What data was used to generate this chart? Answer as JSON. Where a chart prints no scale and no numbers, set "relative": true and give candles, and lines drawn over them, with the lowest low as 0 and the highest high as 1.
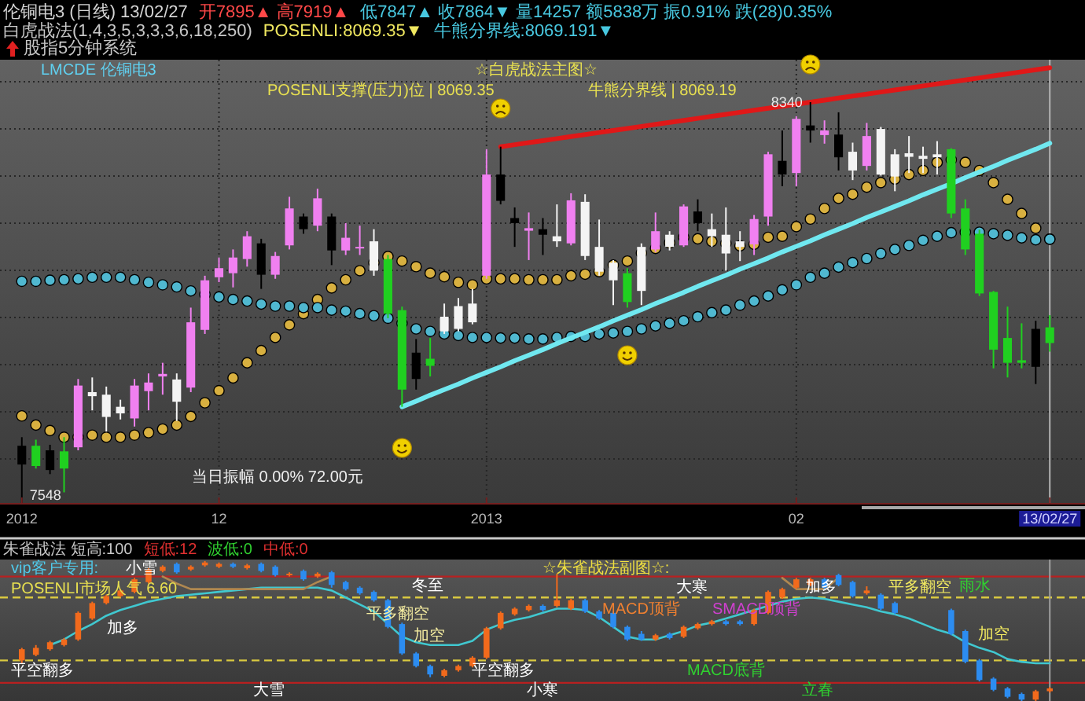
{
  "chart_data": [
    {
      "type": "candlestick",
      "title": "伦铜电3 (日线) 13/02/27",
      "subtitle": "☆白虎战法主图☆",
      "categories": [
        "2012",
        null,
        null,
        null,
        null,
        null,
        null,
        null,
        null,
        null,
        null,
        null,
        null,
        null,
        "12",
        null,
        null,
        null,
        null,
        null,
        null,
        null,
        null,
        null,
        null,
        null,
        null,
        null,
        null,
        null,
        null,
        null,
        null,
        "2013",
        null,
        null,
        null,
        null,
        null,
        null,
        null,
        null,
        null,
        null,
        null,
        null,
        null,
        null,
        null,
        null,
        null,
        null,
        null,
        null,
        null,
        "02",
        null,
        null,
        null,
        null,
        null,
        null,
        null,
        null,
        null,
        null,
        null,
        null,
        null,
        null,
        null,
        null,
        null,
        "13/02/27"
      ],
      "ohlc": [
        [
          7624,
          7678,
          7548,
          7661
        ],
        [
          7661,
          7673,
          7616,
          7621
        ],
        [
          7613,
          7663,
          7605,
          7652
        ],
        [
          7650,
          7678,
          7569,
          7616
        ],
        [
          7658,
          7793,
          7652,
          7780
        ],
        [
          7759,
          7796,
          7731,
          7767
        ],
        [
          7762,
          7778,
          7689,
          7718
        ],
        [
          7725,
          7752,
          7713,
          7738
        ],
        [
          7715,
          7793,
          7699,
          7780
        ],
        [
          7769,
          7804,
          7731,
          7786
        ],
        [
          7798,
          7825,
          7762,
          7803
        ],
        [
          7748,
          7804,
          7710,
          7792
        ],
        [
          7776,
          7934,
          7767,
          7905
        ],
        [
          7890,
          7997,
          7882,
          7988
        ],
        [
          7994,
          8033,
          7984,
          8012
        ],
        [
          8002,
          8049,
          7974,
          8033
        ],
        [
          8030,
          8085,
          8015,
          8075
        ],
        [
          8061,
          8070,
          7971,
          7999
        ],
        [
          7999,
          8044,
          7991,
          8036
        ],
        [
          8057,
          8153,
          8049,
          8130
        ],
        [
          8114,
          8120,
          8080,
          8089
        ],
        [
          8096,
          8169,
          8085,
          8150
        ],
        [
          8114,
          8120,
          8018,
          8047
        ],
        [
          8047,
          8101,
          8038,
          8072
        ],
        [
          8051,
          8096,
          8038,
          8054
        ],
        [
          8007,
          8089,
          7997,
          8065
        ],
        [
          8030,
          8038,
          7913,
          7922
        ],
        [
          7929,
          7936,
          7738,
          7772
        ],
        [
          7793,
          7872,
          7772,
          7845
        ],
        [
          7833,
          7874,
          7798,
          7819
        ],
        [
          7887,
          7942,
          7882,
          7916
        ],
        [
          7892,
          7953,
          7887,
          7937
        ],
        [
          7905,
          7971,
          7901,
          7942
        ],
        [
          7997,
          8247,
          7991,
          8197
        ],
        [
          8197,
          8252,
          8138,
          8145
        ],
        [
          8111,
          8132,
          8054,
          8101
        ],
        [
          8086,
          8122,
          8028,
          8091
        ],
        [
          8089,
          8111,
          8038,
          8078
        ],
        [
          8065,
          8138,
          8054,
          8075
        ],
        [
          8061,
          8160,
          8057,
          8146
        ],
        [
          8143,
          8158,
          8028,
          8036
        ],
        [
          8054,
          8108,
          7997,
          8005
        ],
        [
          8023,
          8028,
          7939,
          7988
        ],
        [
          8002,
          8012,
          7934,
          7945
        ],
        [
          7967,
          8061,
          7939,
          8054
        ],
        [
          8049,
          8122,
          8044,
          8085
        ],
        [
          8054,
          8085,
          8047,
          8078
        ],
        [
          8057,
          8138,
          8054,
          8134
        ],
        [
          8124,
          8148,
          8085,
          8101
        ],
        [
          8075,
          8120,
          8054,
          8089
        ],
        [
          8078,
          8132,
          8007,
          8041
        ],
        [
          8054,
          8085,
          8026,
          8065
        ],
        [
          8059,
          8117,
          8038,
          8109
        ],
        [
          8114,
          8242,
          8096,
          8237
        ],
        [
          8224,
          8284,
          8174,
          8197
        ],
        [
          8200,
          8312,
          8174,
          8307
        ],
        [
          8294,
          8340,
          8260,
          8284
        ],
        [
          8275,
          8304,
          8258,
          8284
        ],
        [
          8276,
          8320,
          8205,
          8231
        ],
        [
          8205,
          8260,
          8186,
          8242
        ],
        [
          8214,
          8299,
          8205,
          8273
        ],
        [
          8287,
          8291,
          8195,
          8197
        ],
        [
          8237,
          8247,
          8164,
          8193
        ],
        [
          8232,
          8273,
          8200,
          8239
        ],
        [
          8234,
          8252,
          8200,
          8228
        ],
        [
          8231,
          8263,
          8197,
          8237
        ],
        [
          8247,
          8249,
          8111,
          8120
        ],
        [
          8130,
          8148,
          8038,
          8049
        ],
        [
          8080,
          8088,
          7957,
          7962
        ],
        [
          7965,
          7967,
          7814,
          7851
        ],
        [
          7874,
          7936,
          7796,
          7825
        ],
        [
          7830,
          7903,
          7814,
          7825
        ],
        [
          7817,
          7908,
          7783,
          7892
        ],
        [
          7895,
          7919,
          7847,
          7864
        ]
      ],
      "colors": [
        "#000000",
        "#20d020",
        "#000000",
        "#20d020",
        "#f080f0",
        "#f4f4f4",
        "#f4f4f4",
        "#f4f4f4",
        "#f080f0",
        "#f080f0",
        "#f080f0",
        "#f4f4f4",
        "#f080f0",
        "#f080f0",
        "#f080f0",
        "#f080f0",
        "#f080f0",
        "#000000",
        "#f080f0",
        "#f080f0",
        "#000000",
        "#f080f0",
        "#000000",
        "#f080f0",
        "#f080f0",
        "#f4f4f4",
        "#20d020",
        "#20d020",
        "#000000",
        "#20d020",
        "#f4f4f4",
        "#f4f4f4",
        "#f4f4f4",
        "#f080f0",
        "#000000",
        "#000000",
        "#f080f0",
        "#000000",
        "#f4f4f4",
        "#f080f0",
        "#f4f4f4",
        "#f4f4f4",
        "#f4f4f4",
        "#20d020",
        "#f4f4f4",
        "#f080f0",
        "#f4f4f4",
        "#f080f0",
        "#000000",
        "#f4f4f4",
        "#f4f4f4",
        "#f4f4f4",
        "#f080f0",
        "#f080f0",
        "#000000",
        "#f080f0",
        "#000000",
        "#f080f0",
        "#000000",
        "#f4f4f4",
        "#f080f0",
        "#f4f4f4",
        "#f4f4f4",
        "#f4f4f4",
        "#f4f4f4",
        "#f4f4f4",
        "#20d020",
        "#20d020",
        "#20d020",
        "#20d020",
        "#20d020",
        "#20d020",
        "#000000",
        "#20d020"
      ],
      "series": [
        {
          "type": "scatter",
          "color": "#d8b040",
          "marker": "circle",
          "values": [
            7720,
            7702,
            7691,
            7678,
            7678,
            7682,
            7678,
            7678,
            7682,
            7687,
            7694,
            7702,
            7719,
            7746,
            7770,
            7795,
            7825,
            7849,
            7875,
            7900,
            7922,
            7950,
            7973,
            7989,
            8007,
            8023,
            8035,
            8026,
            8015,
            8002,
            7995,
            7984,
            7979,
            7991,
            7991,
            7991,
            7989,
            7989,
            7989,
            7997,
            8000,
            8005,
            8018,
            8026,
            8042,
            8051,
            8062,
            8073,
            8070,
            8065,
            8061,
            8056,
            8059,
            8073,
            8075,
            8094,
            8109,
            8130,
            8150,
            8158,
            8172,
            8181,
            8188,
            8197,
            8205,
            8221,
            8226,
            8221,
            8205,
            8181,
            8148,
            8120,
            8091,
            8069.35
          ]
        },
        {
          "type": "scatter",
          "color": "#50b8d0",
          "marker": "circle",
          "values": [
            7986,
            7986,
            7988,
            7989,
            7991,
            7994,
            7994,
            7994,
            7989,
            7984,
            7979,
            7975,
            7967,
            7960,
            7955,
            7950,
            7947,
            7941,
            7937,
            7937,
            7934,
            7934,
            7929,
            7927,
            7922,
            7918,
            7913,
            7903,
            7892,
            7887,
            7882,
            7879,
            7875,
            7875,
            7874,
            7874,
            7872,
            7872,
            7875,
            7877,
            7877,
            7882,
            7884,
            7887,
            7892,
            7898,
            7903,
            7908,
            7916,
            7924,
            7929,
            7939,
            7947,
            7957,
            7969,
            7979,
            7994,
            8002,
            8014,
            8023,
            8031,
            8041,
            8049,
            8057,
            8067,
            8075,
            8082,
            8083,
            8083,
            8080,
            8077,
            8072,
            8068,
            8069.19
          ]
        },
        {
          "type": "line",
          "color": "#e01818",
          "values": [
            null,
            null,
            null,
            null,
            null,
            null,
            null,
            null,
            null,
            null,
            null,
            null,
            null,
            null,
            null,
            null,
            null,
            null,
            null,
            null,
            null,
            null,
            null,
            null,
            null,
            null,
            null,
            null,
            null,
            null,
            null,
            null,
            null,
            null,
            8252,
            8256,
            8260,
            8264,
            8268,
            8272,
            8276,
            8280,
            8284,
            8288,
            8292,
            8296,
            8300,
            8304,
            8308,
            8312,
            8316,
            8320,
            8324,
            8328,
            8332,
            8336,
            8340,
            8344,
            8348,
            8352,
            8356,
            8360,
            8364,
            8368,
            8372,
            8376,
            8380,
            8384,
            8388,
            8392,
            8396,
            8400,
            8404,
            8408
          ]
        },
        {
          "type": "line",
          "color": "#70e8f0",
          "values": [
            null,
            null,
            null,
            null,
            null,
            null,
            null,
            null,
            null,
            null,
            null,
            null,
            null,
            null,
            null,
            null,
            null,
            null,
            null,
            null,
            null,
            null,
            null,
            null,
            null,
            null,
            null,
            7738,
            7749,
            7761,
            7772,
            7783,
            7795,
            7806,
            7817,
            7829,
            7840,
            7851,
            7863,
            7874,
            7885,
            7896,
            7908,
            7919,
            7930,
            7942,
            7953,
            7964,
            7976,
            7987,
            7998,
            8010,
            8021,
            8032,
            8044,
            8055,
            8066,
            8078,
            8089,
            8100,
            8112,
            8123,
            8134,
            8145,
            8157,
            8168,
            8179,
            8191,
            8202,
            8213,
            8225,
            8236,
            8247,
            8259
          ]
        }
      ],
      "ref_lines": [
        {
          "axis": "x",
          "value": "13/02/27",
          "color": "#b4b4b4"
        }
      ],
      "annotations": [
        "开7895▲ 高7919▲",
        "低7847▲ 收7864▼ 量14257 额5838万 振0.91% 跌(28)0.35%",
        "白虎战法(1,4,3,5,3,3,3,6,18,250)",
        "POSENLI:8069.35▼",
        "牛熊分界线:8069.191▼",
        "股指5分钟系统",
        "LMCDE 伦铜电3",
        "POSENLI支撑(压力)位 | 8069.35",
        "牛熊分界线 | 8069.19",
        "当日振幅 0.00% 72.00元",
        "8340",
        "7548"
      ],
      "grid": true,
      "tick_labels": "x"
    },
    {
      "type": "candlestick",
      "relative": true,
      "title": "☆朱雀战法副图☆:",
      "categories": [
        "2012",
        null,
        null,
        null,
        null,
        null,
        null,
        null,
        null,
        null,
        null,
        null,
        null,
        null,
        "12",
        null,
        null,
        null,
        null,
        null,
        null,
        null,
        null,
        null,
        null,
        null,
        null,
        null,
        null,
        null,
        null,
        null,
        null,
        "2013",
        null,
        null,
        null,
        null,
        null,
        null,
        null,
        null,
        null,
        null,
        null,
        null,
        null,
        null,
        null,
        null,
        null,
        null,
        null,
        null,
        null,
        "02",
        null,
        null,
        null,
        null,
        null,
        null,
        null,
        null,
        null,
        null,
        null,
        null,
        null,
        null,
        null,
        null,
        null,
        "13/02/27"
      ],
      "ohlc": [
        [
          0.29,
          0.38,
          0.27,
          0.37
        ],
        [
          0.33,
          0.4,
          0.32,
          0.38
        ],
        [
          0.37,
          0.43,
          0.36,
          0.42
        ],
        [
          0.4,
          0.45,
          0.39,
          0.44
        ],
        [
          0.44,
          0.64,
          0.43,
          0.63
        ],
        [
          0.59,
          0.71,
          0.58,
          0.7
        ],
        [
          0.7,
          0.76,
          0.69,
          0.75
        ],
        [
          0.75,
          0.8,
          0.74,
          0.79
        ],
        [
          0.78,
          0.88,
          0.77,
          0.87
        ],
        [
          0.85,
          0.95,
          0.84,
          0.94
        ],
        [
          0.93,
          0.97,
          0.92,
          0.96
        ],
        [
          0.98,
          0.99,
          0.91,
          0.92
        ],
        [
          0.94,
          0.97,
          0.93,
          0.96
        ],
        [
          0.97,
          1,
          0.96,
          0.99
        ],
        [
          0.96,
          0.99,
          0.95,
          0.98
        ],
        [
          0.98,
          0.99,
          0.95,
          0.96
        ],
        [
          0.95,
          0.98,
          0.94,
          0.97
        ],
        [
          0.98,
          0.99,
          0.92,
          0.93
        ],
        [
          0.96,
          0.97,
          0.89,
          0.9
        ],
        [
          0.9,
          0.92,
          0.89,
          0.91
        ],
        [
          0.93,
          0.94,
          0.86,
          0.87
        ],
        [
          0.89,
          0.92,
          0.88,
          0.91
        ],
        [
          0.92,
          0.93,
          0.81,
          0.83
        ],
        [
          0.85,
          0.86,
          0.79,
          0.8
        ],
        [
          0.81,
          0.82,
          0.76,
          0.77
        ],
        [
          0.78,
          0.79,
          0.71,
          0.72
        ],
        [
          0.72,
          0.73,
          0.52,
          0.53
        ],
        [
          0.55,
          0.56,
          0.33,
          0.34
        ],
        [
          0.34,
          0.35,
          0.24,
          0.25
        ],
        [
          0.25,
          0.26,
          0.17,
          0.19
        ],
        [
          0.18,
          0.23,
          0.17,
          0.22
        ],
        [
          0.22,
          0.26,
          0.21,
          0.25
        ],
        [
          0.25,
          0.32,
          0.24,
          0.31
        ],
        [
          0.31,
          0.53,
          0.3,
          0.52
        ],
        [
          0.52,
          0.64,
          0.51,
          0.63
        ],
        [
          0.62,
          0.67,
          0.61,
          0.66
        ],
        [
          0.65,
          0.69,
          0.64,
          0.68
        ],
        [
          0.68,
          0.69,
          0.64,
          0.65
        ],
        [
          0.68,
          0.91,
          0.67,
          0.72
        ],
        [
          0.66,
          0.73,
          0.65,
          0.72
        ],
        [
          0.72,
          0.73,
          0.63,
          0.64
        ],
        [
          0.64,
          0.65,
          0.58,
          0.59
        ],
        [
          0.63,
          0.64,
          0.52,
          0.53
        ],
        [
          0.53,
          0.54,
          0.43,
          0.44
        ],
        [
          0.48,
          0.5,
          0.43,
          0.44
        ],
        [
          0.44,
          0.48,
          0.43,
          0.47
        ],
        [
          0.48,
          0.49,
          0.44,
          0.45
        ],
        [
          0.46,
          0.54,
          0.45,
          0.53
        ],
        [
          0.52,
          0.56,
          0.51,
          0.55
        ],
        [
          0.55,
          0.58,
          0.54,
          0.57
        ],
        [
          0.57,
          0.58,
          0.54,
          0.55
        ],
        [
          0.57,
          0.58,
          0.54,
          0.55
        ],
        [
          0.55,
          0.66,
          0.54,
          0.65
        ],
        [
          0.63,
          0.79,
          0.62,
          0.78
        ],
        [
          0.74,
          0.81,
          0.73,
          0.8
        ],
        [
          0.81,
          0.88,
          0.8,
          0.87
        ],
        [
          0.83,
          0.88,
          0.82,
          0.87
        ],
        [
          0.87,
          0.88,
          0.8,
          0.81
        ],
        [
          0.9,
          0.91,
          0.82,
          0.83
        ],
        [
          0.85,
          0.86,
          0.74,
          0.75
        ],
        [
          0.77,
          0.82,
          0.76,
          0.79
        ],
        [
          0.76,
          0.77,
          0.65,
          0.66
        ],
        [
          0.7,
          0.71,
          0.62,
          0.63
        ],
        null,
        null,
        null,
        [
          0.65,
          0.66,
          0.47,
          0.48
        ],
        [
          0.5,
          0.51,
          0.27,
          0.28
        ],
        [
          0.29,
          0.3,
          0.14,
          0.15
        ],
        [
          0.16,
          0.17,
          0.07,
          0.08
        ],
        [
          0.09,
          0.1,
          0.02,
          0.03
        ],
        [
          0.05,
          0.06,
          0,
          0.01
        ],
        [
          0.01,
          0.08,
          0,
          0.07
        ],
        [
          0.07,
          0.1,
          0.06,
          0.09
        ]
      ],
      "colors": [
        "#f26a1c",
        "#f26a1c",
        "#f26a1c",
        "#f26a1c",
        "#f26a1c",
        "#f26a1c",
        "#f26a1c",
        "#f26a1c",
        "#f26a1c",
        "#f26a1c",
        "#f26a1c",
        "#2c8cf0",
        "#f26a1c",
        "#f26a1c",
        "#f26a1c",
        "#2c8cf0",
        "#f26a1c",
        "#2c8cf0",
        "#2c8cf0",
        "#f26a1c",
        "#2c8cf0",
        "#f26a1c",
        "#2c8cf0",
        "#2c8cf0",
        "#2c8cf0",
        "#2c8cf0",
        "#2c8cf0",
        "#2c8cf0",
        "#2c8cf0",
        "#2c8cf0",
        "#f26a1c",
        "#f26a1c",
        "#f26a1c",
        "#f26a1c",
        "#f26a1c",
        "#f26a1c",
        "#f26a1c",
        "#2c8cf0",
        "#f26a1c",
        "#f26a1c",
        "#2c8cf0",
        "#2c8cf0",
        "#2c8cf0",
        "#2c8cf0",
        "#2c8cf0",
        "#f26a1c",
        "#2c8cf0",
        "#f26a1c",
        "#f26a1c",
        "#f26a1c",
        "#2c8cf0",
        "#2c8cf0",
        "#f26a1c",
        "#f26a1c",
        "#f26a1c",
        "#f26a1c",
        "#f26a1c",
        "#2c8cf0",
        "#2c8cf0",
        "#2c8cf0",
        "#f26a1c",
        "#2c8cf0",
        "#2c8cf0",
        null,
        null,
        null,
        "#2c8cf0",
        "#2c8cf0",
        "#2c8cf0",
        "#2c8cf0",
        "#2c8cf0",
        "#2c8cf0",
        "#f26a1c",
        "#f26a1c"
      ],
      "series": [
        {
          "type": "line",
          "color": "#40c8d0",
          "values": [
            null,
            null,
            0.4,
            0.44,
            0.5,
            0.55,
            0.61,
            0.65,
            0.68,
            0.71,
            0.73,
            0.75,
            0.76,
            0.77,
            0.78,
            0.79,
            0.8,
            0.81,
            0.81,
            0.81,
            0.81,
            0.81,
            0.79,
            0.74,
            0.69,
            0.64,
            0.55,
            0.46,
            0.42,
            0.4,
            0.4,
            0.4,
            0.43,
            0.51,
            0.55,
            0.58,
            0.6,
            0.63,
            0.66,
            0.66,
            0.65,
            0.6,
            0.53,
            0.46,
            0.44,
            0.44,
            0.47,
            0.5,
            0.54,
            0.56,
            0.59,
            0.62,
            0.65,
            0.68,
            0.71,
            0.73,
            0.74,
            0.73,
            0.71,
            0.69,
            0.67,
            0.64,
            0.62,
            0.59,
            0.55,
            0.51,
            0.48,
            0.42,
            0.38,
            0.35,
            0.3,
            0.28,
            0.27,
            0.27
          ]
        },
        {
          "type": "line",
          "color": "#b08850",
          "values": [
            null,
            null,
            null,
            null,
            null,
            null,
            null,
            null,
            null,
            null,
            0.89,
            0.84,
            0.8,
            0.8,
            0.8,
            0.8,
            0.8,
            0.8,
            0.8,
            0.8,
            0.8,
            0.85,
            0.89,
            null,
            null,
            null,
            null,
            null,
            null,
            null,
            null,
            null,
            null,
            null,
            null,
            null,
            null,
            null,
            null,
            null,
            null,
            null,
            null,
            null,
            null,
            null,
            null,
            null,
            null,
            null,
            null,
            null,
            null,
            null,
            0.88,
            0.8,
            0.8,
            0.8,
            0.88,
            null,
            null,
            null,
            null,
            null,
            null,
            null,
            null,
            null,
            null,
            null,
            null,
            null,
            null,
            null
          ]
        }
      ],
      "ref_lines": [
        {
          "axis": "y",
          "value": 0.89,
          "color": "#b82020"
        },
        {
          "axis": "y",
          "value": 0.74,
          "color": "#d8c840",
          "line_style": "dashed"
        },
        {
          "axis": "y",
          "value": 0.29,
          "color": "#d8c840",
          "line_style": "dashed"
        },
        {
          "axis": "y",
          "value": 0.13,
          "color": "#b82020"
        },
        {
          "axis": "x",
          "value": "13/02/27",
          "color": "#a0a0a0"
        }
      ],
      "annotations": [
        "朱雀战法 短高:100",
        "短低:12",
        "波低:0",
        "中低:0",
        "vip客户专用:",
        "POSENLI市场人气 6.60",
        "平空翻多",
        "加多",
        "小雪",
        "大雪",
        "冬至",
        "平多翻空",
        "加空",
        "平空翻多",
        "小寒",
        "大寒",
        "MACD顶背",
        "SMACD顶背",
        "加多",
        "MACD底背",
        "立春",
        "雨水",
        "平多翻空",
        "加空"
      ],
      "tick_labels": false
    }
  ]
}
